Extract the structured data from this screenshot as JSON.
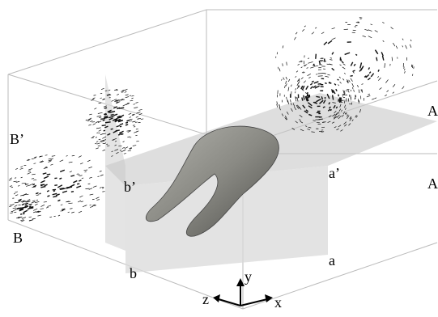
{
  "labels": {
    "upper_left": "B’",
    "lower_left": "B",
    "plane_upper_left": "b’",
    "plane_lower_left": "b",
    "plane_upper_right": "a’",
    "plane_lower_right": "a",
    "upper_right": "A",
    "lower_right": "A"
  },
  "axes": {
    "x": "x",
    "y": "y",
    "z": "z"
  }
}
